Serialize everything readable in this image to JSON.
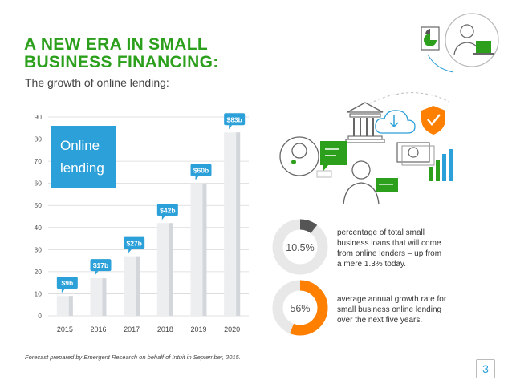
{
  "header": {
    "title_line1": "A NEW ERA IN SMALL",
    "title_line2": "BUSINESS FINANCING:",
    "subtitle": "The growth of online lending:"
  },
  "chart_data": {
    "type": "bar",
    "categories": [
      "2015",
      "2016",
      "2017",
      "2018",
      "2019",
      "2020"
    ],
    "values": [
      9,
      17,
      27,
      42,
      60,
      83
    ],
    "data_labels": [
      "$9b",
      "$17b",
      "$27b",
      "$42b",
      "$60b",
      "$83b"
    ],
    "yticks": [
      0,
      10,
      20,
      30,
      40,
      50,
      60,
      70,
      80,
      90
    ],
    "ylim": [
      0,
      90
    ],
    "grid": true,
    "callout_line1": "Online",
    "callout_line2": "lending",
    "colors": {
      "bar": "#eceef0",
      "bar_side": "#d3d7db",
      "label": "#2ca0d8",
      "callout": "#2ca0d8",
      "grid": "#d8d8d8"
    }
  },
  "stats": [
    {
      "value": "10.5%",
      "fraction": 0.105,
      "color": "#555555",
      "lines": [
        "percentage of total small",
        "business loans that will come",
        "from online lenders – up from",
        "a mere 1.3% today."
      ]
    },
    {
      "value": "56%",
      "fraction": 0.56,
      "color": "#ff8000",
      "lines": [
        "average annual growth rate for",
        "small business online lending",
        "over the next five years."
      ]
    }
  ],
  "footnote": "Forecast prepared by Emergent Research on behalf of Intuit in September, 2015.",
  "page_number": "3",
  "colors": {
    "accent_green": "#2ca01c",
    "accent_blue": "#2ca0d8",
    "accent_orange": "#ff8000"
  }
}
